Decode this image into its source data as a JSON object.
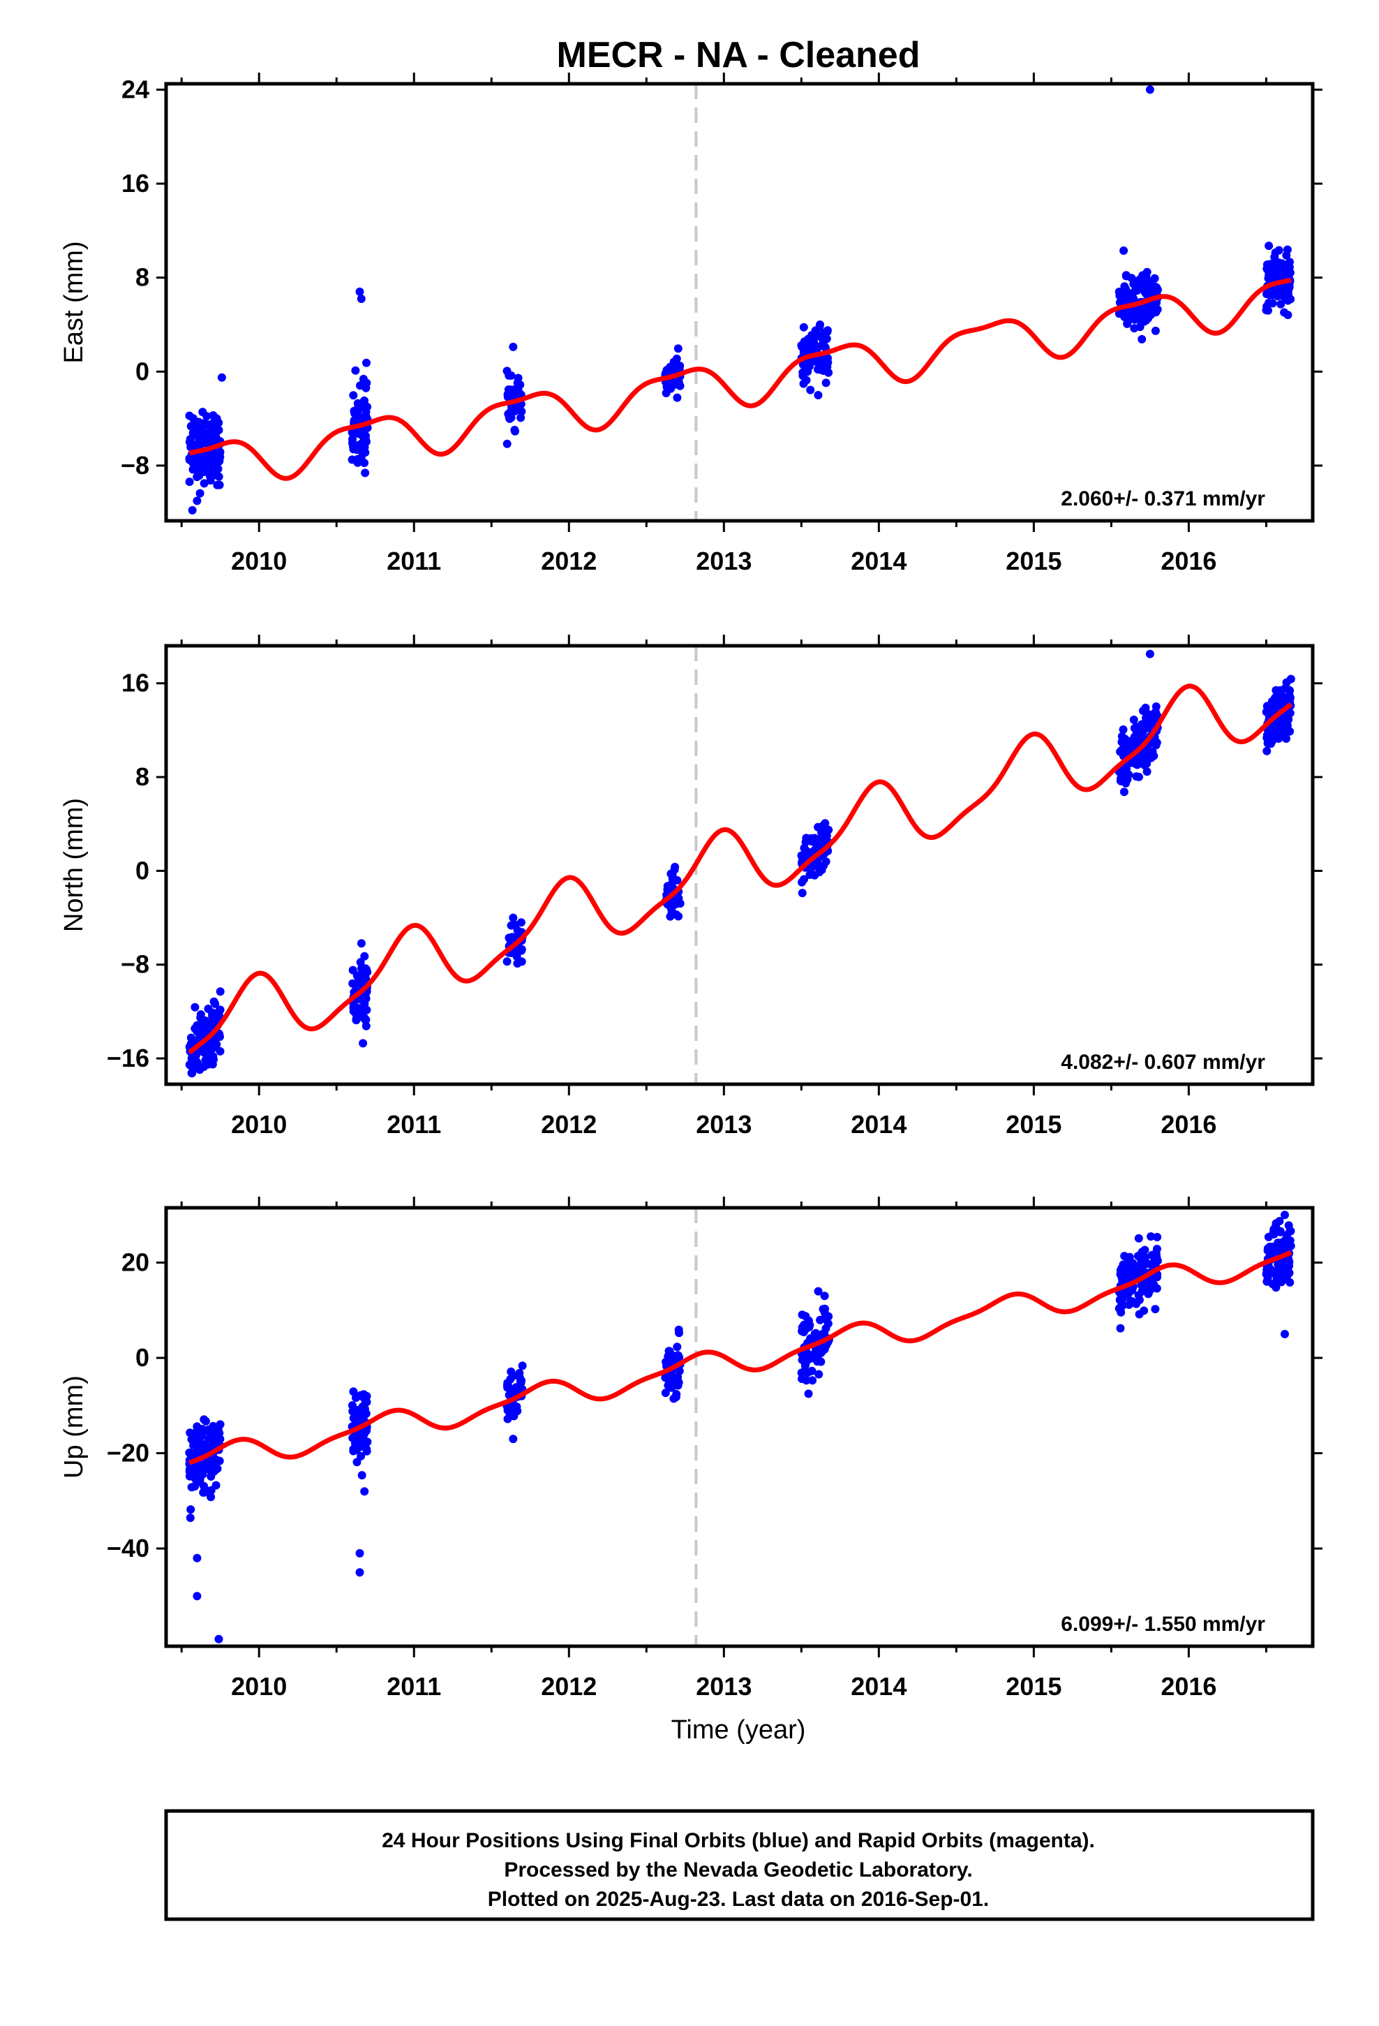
{
  "title": "MECR  - NA - Cleaned",
  "xlabel": "Time (year)",
  "footer": {
    "line1": "24 Hour Positions Using Final Orbits (blue) and Rapid Orbits (magenta).",
    "line2": "Processed by the Nevada Geodetic Laboratory.",
    "line3": "Plotted on 2025-Aug-23. Last data on 2016-Sep-01."
  },
  "colors": {
    "points": "#0000ff",
    "model": "#ff0000",
    "event_line": "#c8c8c8",
    "frame": "#000000"
  },
  "chart_data": [
    {
      "type": "scatter",
      "name": "east",
      "ylabel": "East (mm)",
      "xlim": [
        2009.4,
        2016.8
      ],
      "ylim": [
        -12.7,
        24.5
      ],
      "yticks": [
        -8,
        0,
        8,
        16,
        24
      ],
      "xticks": [
        2010,
        2011,
        2012,
        2013,
        2014,
        2015,
        2016
      ],
      "event_line_x": 2012.82,
      "rate_text": "2.060+/- 0.371 mm/yr",
      "model": {
        "t0": 2009.55,
        "y0": -8.0,
        "slope": 2.06,
        "annual_amp": 1.8,
        "annual_phase": 0.55,
        "semi_amp": 0.6,
        "semi_phase": 0.2,
        "start": 2009.55,
        "end": 2016.66
      },
      "segments": [
        {
          "start": 2009.55,
          "end": 2009.75,
          "n": 150,
          "spread": 1.5
        },
        {
          "start": 2010.6,
          "end": 2010.7,
          "n": 80,
          "spread": 1.8
        },
        {
          "start": 2011.6,
          "end": 2011.7,
          "n": 45,
          "spread": 1.0
        },
        {
          "start": 2012.62,
          "end": 2012.72,
          "n": 45,
          "spread": 0.8
        },
        {
          "start": 2013.5,
          "end": 2013.68,
          "n": 80,
          "spread": 1.2
        },
        {
          "start": 2015.55,
          "end": 2015.8,
          "n": 150,
          "spread": 1.1
        },
        {
          "start": 2016.5,
          "end": 2016.66,
          "n": 110,
          "spread": 1.1
        }
      ],
      "outliers": [
        [
          2009.57,
          -11.8
        ],
        [
          2009.6,
          -11.0
        ],
        [
          2009.76,
          -0.5
        ],
        [
          2010.65,
          6.8
        ],
        [
          2010.66,
          6.2
        ],
        [
          2011.64,
          2.1
        ],
        [
          2013.62,
          4.0
        ],
        [
          2015.58,
          10.3
        ],
        [
          2015.75,
          24.0
        ],
        [
          2016.63,
          9.9
        ]
      ]
    },
    {
      "type": "scatter",
      "name": "north",
      "ylabel": "North (mm)",
      "xlim": [
        2009.4,
        2016.8
      ],
      "ylim": [
        -18.2,
        19.2
      ],
      "yticks": [
        -16,
        -8,
        0,
        8,
        16
      ],
      "xticks": [
        2010,
        2011,
        2012,
        2013,
        2014,
        2015,
        2016
      ],
      "event_line_x": 2012.82,
      "rate_text": "4.082+/- 0.607 mm/yr",
      "model": {
        "t0": 2009.55,
        "y0": -14.0,
        "slope": 4.082,
        "annual_amp": 2.8,
        "annual_phase": 0.3,
        "semi_amp": 0.8,
        "semi_phase": 0.1,
        "start": 2009.55,
        "end": 2016.66
      },
      "segments": [
        {
          "start": 2009.55,
          "end": 2009.75,
          "n": 150,
          "spread": 1.1
        },
        {
          "start": 2010.6,
          "end": 2010.7,
          "n": 80,
          "spread": 1.6
        },
        {
          "start": 2011.6,
          "end": 2011.7,
          "n": 45,
          "spread": 1.0
        },
        {
          "start": 2012.62,
          "end": 2012.72,
          "n": 45,
          "spread": 0.9
        },
        {
          "start": 2013.5,
          "end": 2013.68,
          "n": 80,
          "spread": 1.2
        },
        {
          "start": 2015.55,
          "end": 2015.8,
          "n": 150,
          "spread": 1.3
        },
        {
          "start": 2016.5,
          "end": 2016.66,
          "n": 110,
          "spread": 1.0
        }
      ],
      "outliers": [
        [
          2009.75,
          -10.3
        ],
        [
          2011.64,
          -4.0
        ],
        [
          2015.75,
          18.5
        ],
        [
          2016.63,
          12.9
        ]
      ]
    },
    {
      "type": "scatter",
      "name": "up",
      "ylabel": "Up (mm)",
      "xlim": [
        2009.4,
        2016.8
      ],
      "ylim": [
        -60.5,
        31.5
      ],
      "yticks": [
        -40,
        -20,
        0,
        20
      ],
      "xticks": [
        2010,
        2011,
        2012,
        2013,
        2014,
        2015,
        2016
      ],
      "event_line_x": 2012.82,
      "rate_text": "6.099+/- 1.550 mm/yr",
      "model": {
        "t0": 2009.55,
        "y0": -22.0,
        "slope": 6.099,
        "annual_amp": 2.5,
        "annual_phase": 0.45,
        "semi_amp": 0.8,
        "semi_phase": 0.2,
        "start": 2009.55,
        "end": 2016.66
      },
      "segments": [
        {
          "start": 2009.55,
          "end": 2009.75,
          "n": 150,
          "spread": 3.5
        },
        {
          "start": 2010.6,
          "end": 2010.7,
          "n": 80,
          "spread": 3.5
        },
        {
          "start": 2011.6,
          "end": 2011.7,
          "n": 45,
          "spread": 3.0
        },
        {
          "start": 2012.62,
          "end": 2012.72,
          "n": 45,
          "spread": 2.8
        },
        {
          "start": 2013.5,
          "end": 2013.68,
          "n": 80,
          "spread": 4.0
        },
        {
          "start": 2015.55,
          "end": 2015.8,
          "n": 150,
          "spread": 3.5
        },
        {
          "start": 2016.5,
          "end": 2016.66,
          "n": 110,
          "spread": 3.5
        }
      ],
      "outliers": [
        [
          2009.6,
          -42.0
        ],
        [
          2009.6,
          -50.0
        ],
        [
          2009.74,
          -59.0
        ],
        [
          2010.65,
          -41.0
        ],
        [
          2010.65,
          -45.0
        ],
        [
          2010.68,
          -28.0
        ],
        [
          2011.64,
          -17.0
        ],
        [
          2013.65,
          13.0
        ],
        [
          2016.62,
          5.0
        ],
        [
          2016.62,
          30.0
        ]
      ]
    }
  ]
}
